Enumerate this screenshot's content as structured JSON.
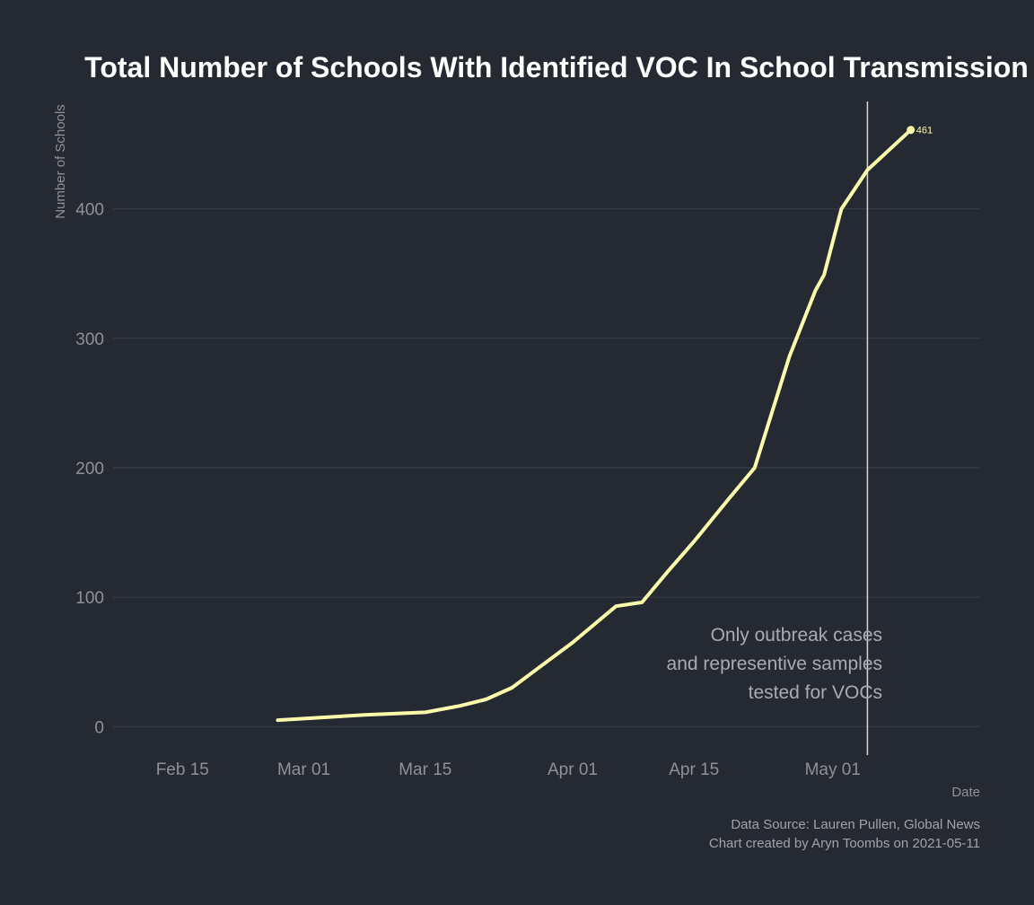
{
  "chart_data": {
    "type": "line",
    "title": "Total Number of Schools With Identified VOC In School Transmission",
    "xlabel": "Date",
    "ylabel": "Number of Schools",
    "xlim": [
      "2021-02-07",
      "2021-05-18"
    ],
    "ylim": [
      -22,
      483
    ],
    "x_ticks": [
      {
        "date": "2021-02-15",
        "label": "Feb 15"
      },
      {
        "date": "2021-03-01",
        "label": "Mar 01"
      },
      {
        "date": "2021-03-15",
        "label": "Mar 15"
      },
      {
        "date": "2021-04-01",
        "label": "Apr 01"
      },
      {
        "date": "2021-04-15",
        "label": "Apr 15"
      },
      {
        "date": "2021-05-01",
        "label": "May 01"
      }
    ],
    "y_ticks": [
      0,
      100,
      200,
      300,
      400
    ],
    "grid": "horizontal",
    "line_color": "#fbfbab",
    "series": [
      {
        "points": [
          {
            "x": "2021-02-26",
            "y": 5
          },
          {
            "x": "2021-03-08",
            "y": 9
          },
          {
            "x": "2021-03-15",
            "y": 11
          },
          {
            "x": "2021-03-19",
            "y": 16
          },
          {
            "x": "2021-03-22",
            "y": 21
          },
          {
            "x": "2021-03-25",
            "y": 30
          },
          {
            "x": "2021-03-29",
            "y": 50
          },
          {
            "x": "2021-04-01",
            "y": 65
          },
          {
            "x": "2021-04-06",
            "y": 93
          },
          {
            "x": "2021-04-09",
            "y": 96
          },
          {
            "x": "2021-04-12",
            "y": 120
          },
          {
            "x": "2021-04-15",
            "y": 143
          },
          {
            "x": "2021-04-19",
            "y": 176
          },
          {
            "x": "2021-04-22",
            "y": 200
          },
          {
            "x": "2021-04-26",
            "y": 286
          },
          {
            "x": "2021-04-29",
            "y": 337
          },
          {
            "x": "2021-04-30",
            "y": 349
          },
          {
            "x": "2021-05-02",
            "y": 400
          },
          {
            "x": "2021-05-05",
            "y": 430
          },
          {
            "x": "2021-05-10",
            "y": 461
          }
        ]
      }
    ],
    "end_label": "461",
    "reference_line_date": "2021-05-05",
    "annotation_lines": [
      "Only outbreak cases",
      "and representive samples",
      "tested for VOCs"
    ],
    "caption_lines": [
      "Data Source: Lauren Pullen, Global News",
      "Chart created by Aryn Toombs on 2021-05-11"
    ]
  }
}
